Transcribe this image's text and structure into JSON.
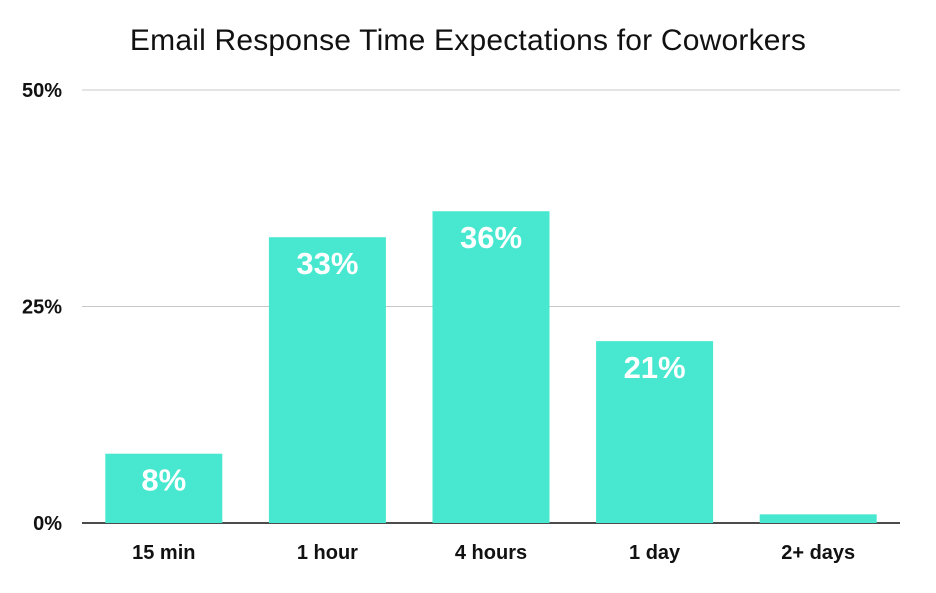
{
  "chart_data": {
    "type": "bar",
    "title": "Email Response Time Expectations for Coworkers",
    "categories": [
      "15 min",
      "1 hour",
      "4 hours",
      "1 day",
      "2+ days"
    ],
    "values": [
      8,
      33,
      36,
      21,
      1
    ],
    "data_labels": [
      "8%",
      "33%",
      "36%",
      "21%",
      ""
    ],
    "y_ticks": [
      0,
      25,
      50
    ],
    "y_tick_labels": [
      "0%",
      "25%",
      "50%"
    ],
    "ylim": [
      0,
      50
    ],
    "xlabel": "",
    "ylabel": "",
    "grid": true,
    "bar_color": "#48e8d0"
  }
}
